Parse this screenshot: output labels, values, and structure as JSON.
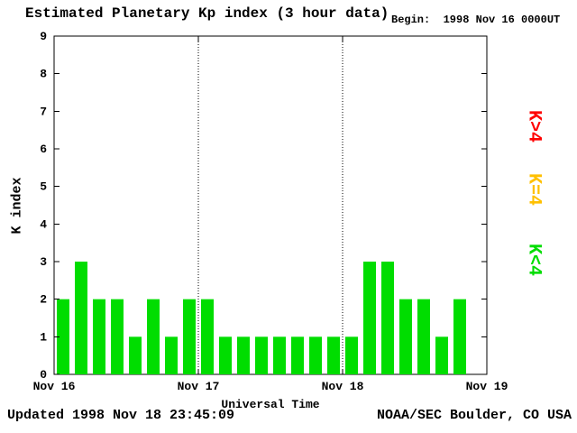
{
  "title": "Estimated Planetary Kp index (3 hour data)",
  "begin_label": "Begin:  1998 Nov 16 0000UT",
  "footer": {
    "updated": "Updated 1998 Nov 18 23:45:09",
    "source": "NOAA/SEC Boulder, CO USA"
  },
  "legend": [
    {
      "label": "K>4",
      "color": "#ff0000"
    },
    {
      "label": "K=4",
      "color": "#ffc000"
    },
    {
      "label": "K<4",
      "color": "#00dd00"
    }
  ],
  "chart_data": {
    "type": "bar",
    "title": "Estimated Planetary Kp index (3 hour data)",
    "xlabel": "Universal Time",
    "ylabel": "K index",
    "ylim": [
      0,
      9
    ],
    "y_ticks": [
      0,
      1,
      2,
      3,
      4,
      5,
      6,
      7,
      8,
      9
    ],
    "x_ticks": [
      "Nov 16",
      "Nov 17",
      "Nov 18",
      "Nov 19"
    ],
    "begin": "1998 Nov 16 0000UT",
    "interval_hours": 3,
    "bar_color": "#00dd00",
    "grid": "dotted vertical lines at day boundaries",
    "legend_position": "right",
    "values": [
      2,
      3,
      2,
      2,
      1,
      2,
      1,
      2,
      2,
      1,
      1,
      1,
      1,
      1,
      1,
      1,
      1,
      3,
      3,
      2,
      2,
      1,
      2
    ]
  }
}
